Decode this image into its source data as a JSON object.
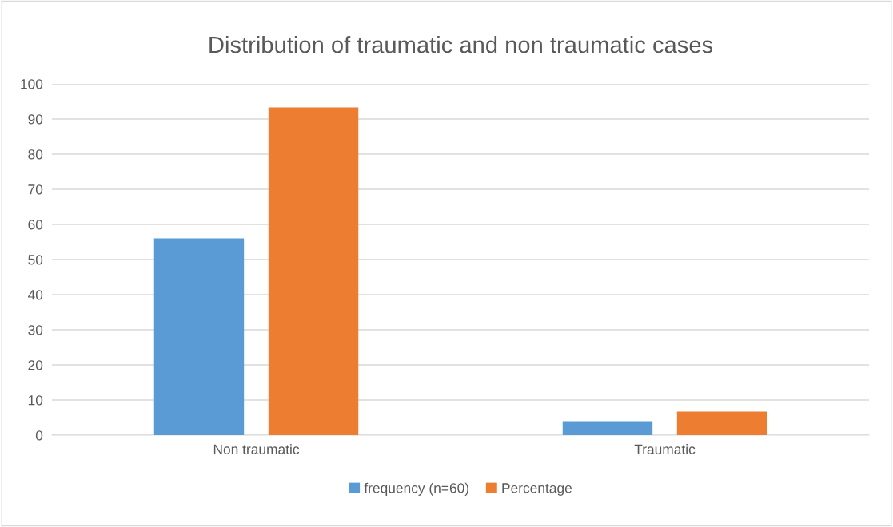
{
  "chart_data": {
    "type": "bar",
    "title": "Distribution of traumatic and non traumatic cases",
    "categories": [
      "Non traumatic",
      "Traumatic"
    ],
    "series": [
      {
        "name": "frequency (n=60)",
        "color": "#5b9bd5",
        "values": [
          56,
          4
        ]
      },
      {
        "name": "Percentage",
        "color": "#ed7d31",
        "values": [
          93.3,
          6.7
        ]
      }
    ],
    "ylim": [
      0,
      100
    ],
    "yticks": [
      0,
      10,
      20,
      30,
      40,
      50,
      60,
      70,
      80,
      90,
      100
    ],
    "grid": "y",
    "legend": "bottom"
  }
}
